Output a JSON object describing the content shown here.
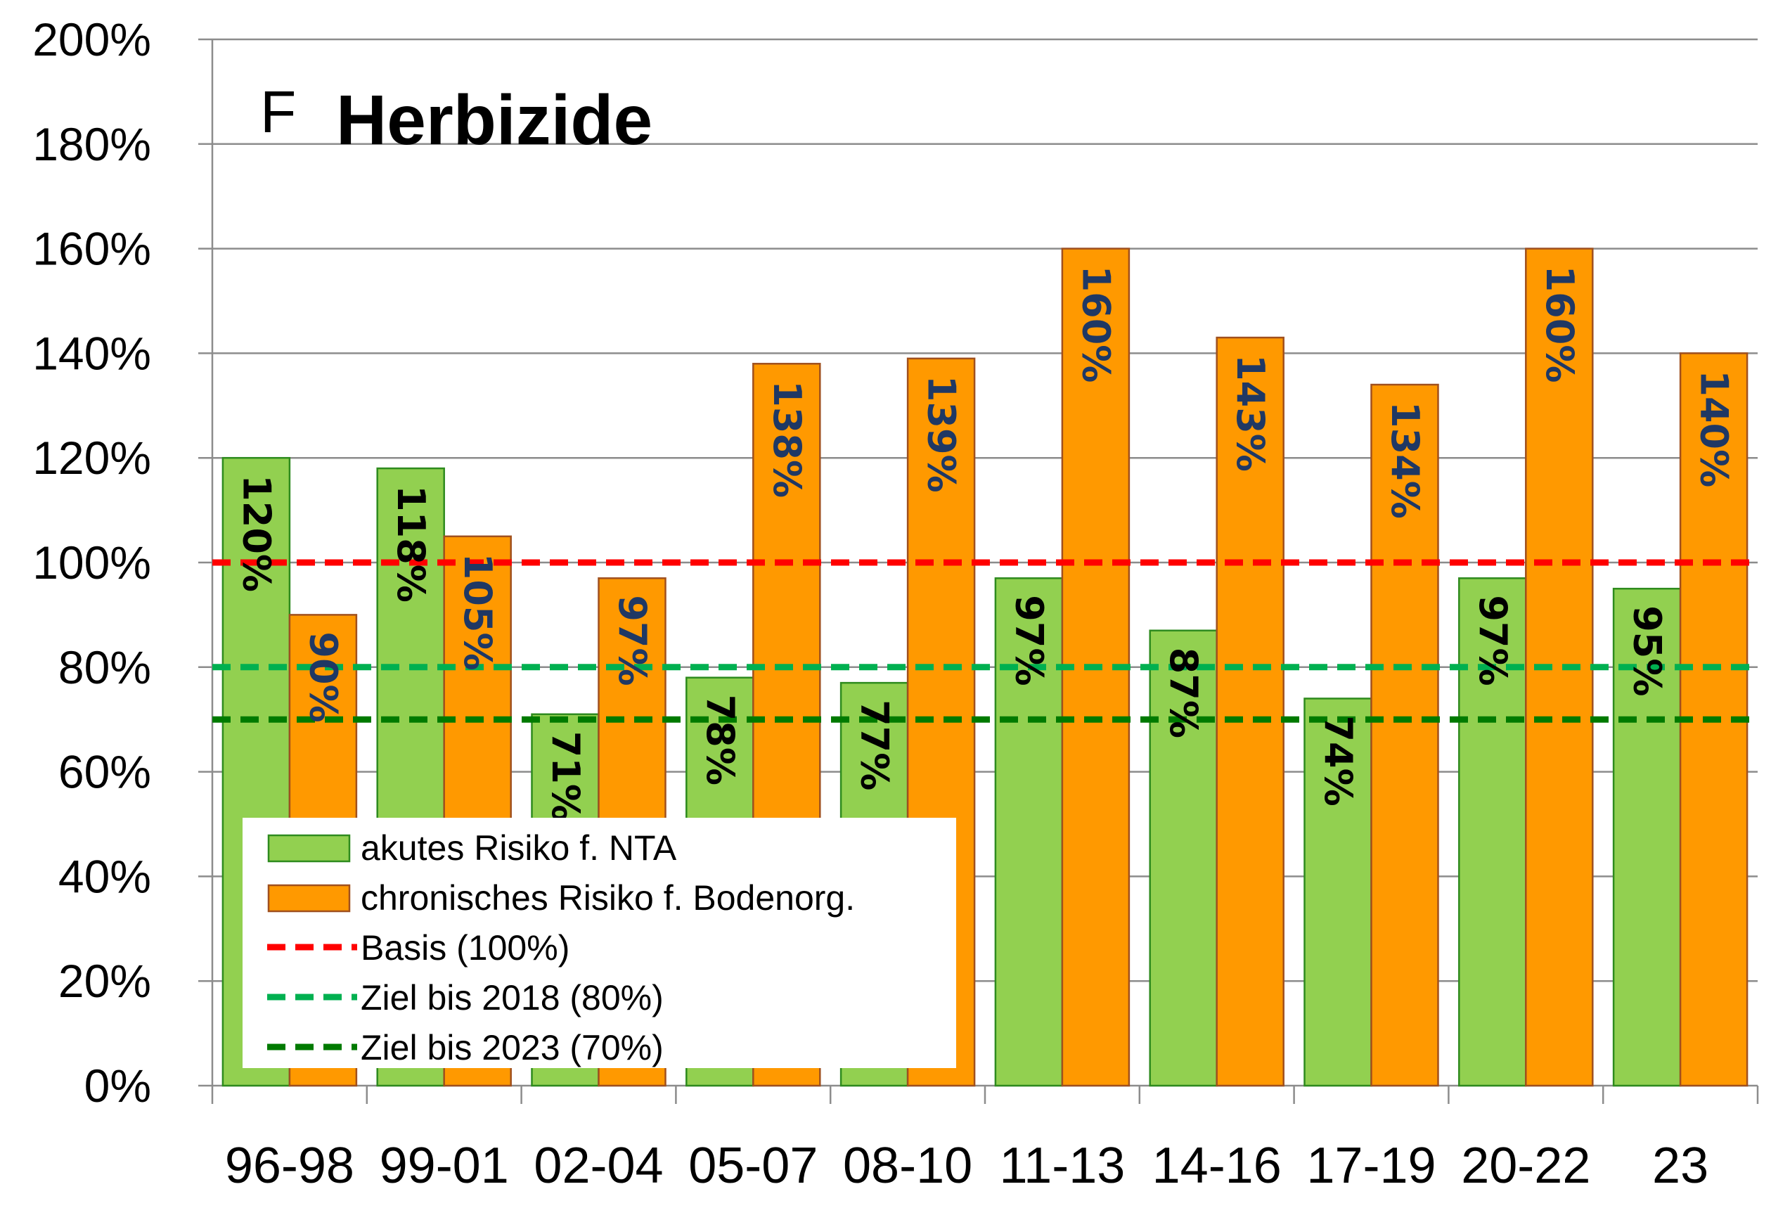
{
  "chart_data": {
    "type": "bar",
    "panel_letter": "F",
    "title": "Herbizide",
    "categories": [
      "96-98",
      "99-01",
      "02-04",
      "05-07",
      "08-10",
      "11-13",
      "14-16",
      "17-19",
      "20-22",
      "23"
    ],
    "series": [
      {
        "name": "akutes Risiko f. NTA",
        "color": "#92d050",
        "stroke": "#2e8b1e",
        "label_color": "#000000",
        "values": [
          120,
          118,
          71,
          78,
          77,
          97,
          87,
          74,
          97,
          95
        ],
        "labels": [
          "120%",
          "118%",
          "71%",
          "78%",
          "77%",
          "97%",
          "87%",
          "74%",
          "97%",
          "95%"
        ]
      },
      {
        "name": "chronisches Risiko f. Bodenorg.",
        "color": "#ff9900",
        "stroke": "#a0501e",
        "label_color": "#1f3864",
        "values": [
          90,
          105,
          97,
          138,
          139,
          160,
          143,
          134,
          160,
          140
        ],
        "labels": [
          "90%",
          "105%",
          "97%",
          "138%",
          "139%",
          "160%",
          "143%",
          "134%",
          "160%",
          "140%"
        ]
      }
    ],
    "reference_lines": [
      {
        "name": "Basis (100%)",
        "value": 100,
        "color": "#ff0000"
      },
      {
        "name": "Ziel bis 2018 (80%)",
        "value": 80,
        "color": "#00b050"
      },
      {
        "name": "Ziel bis 2023 (70%)",
        "value": 70,
        "color": "#007a00"
      }
    ],
    "ylim": [
      0,
      200
    ],
    "yticks": [
      0,
      20,
      40,
      60,
      80,
      100,
      120,
      140,
      160,
      180,
      200
    ],
    "ytick_labels": [
      "0%",
      "20%",
      "40%",
      "60%",
      "80%",
      "100%",
      "120%",
      "140%",
      "160%",
      "180%",
      "200%"
    ],
    "xlabel": "",
    "ylabel": "",
    "grid": true,
    "legend_position": "bottom-left"
  }
}
